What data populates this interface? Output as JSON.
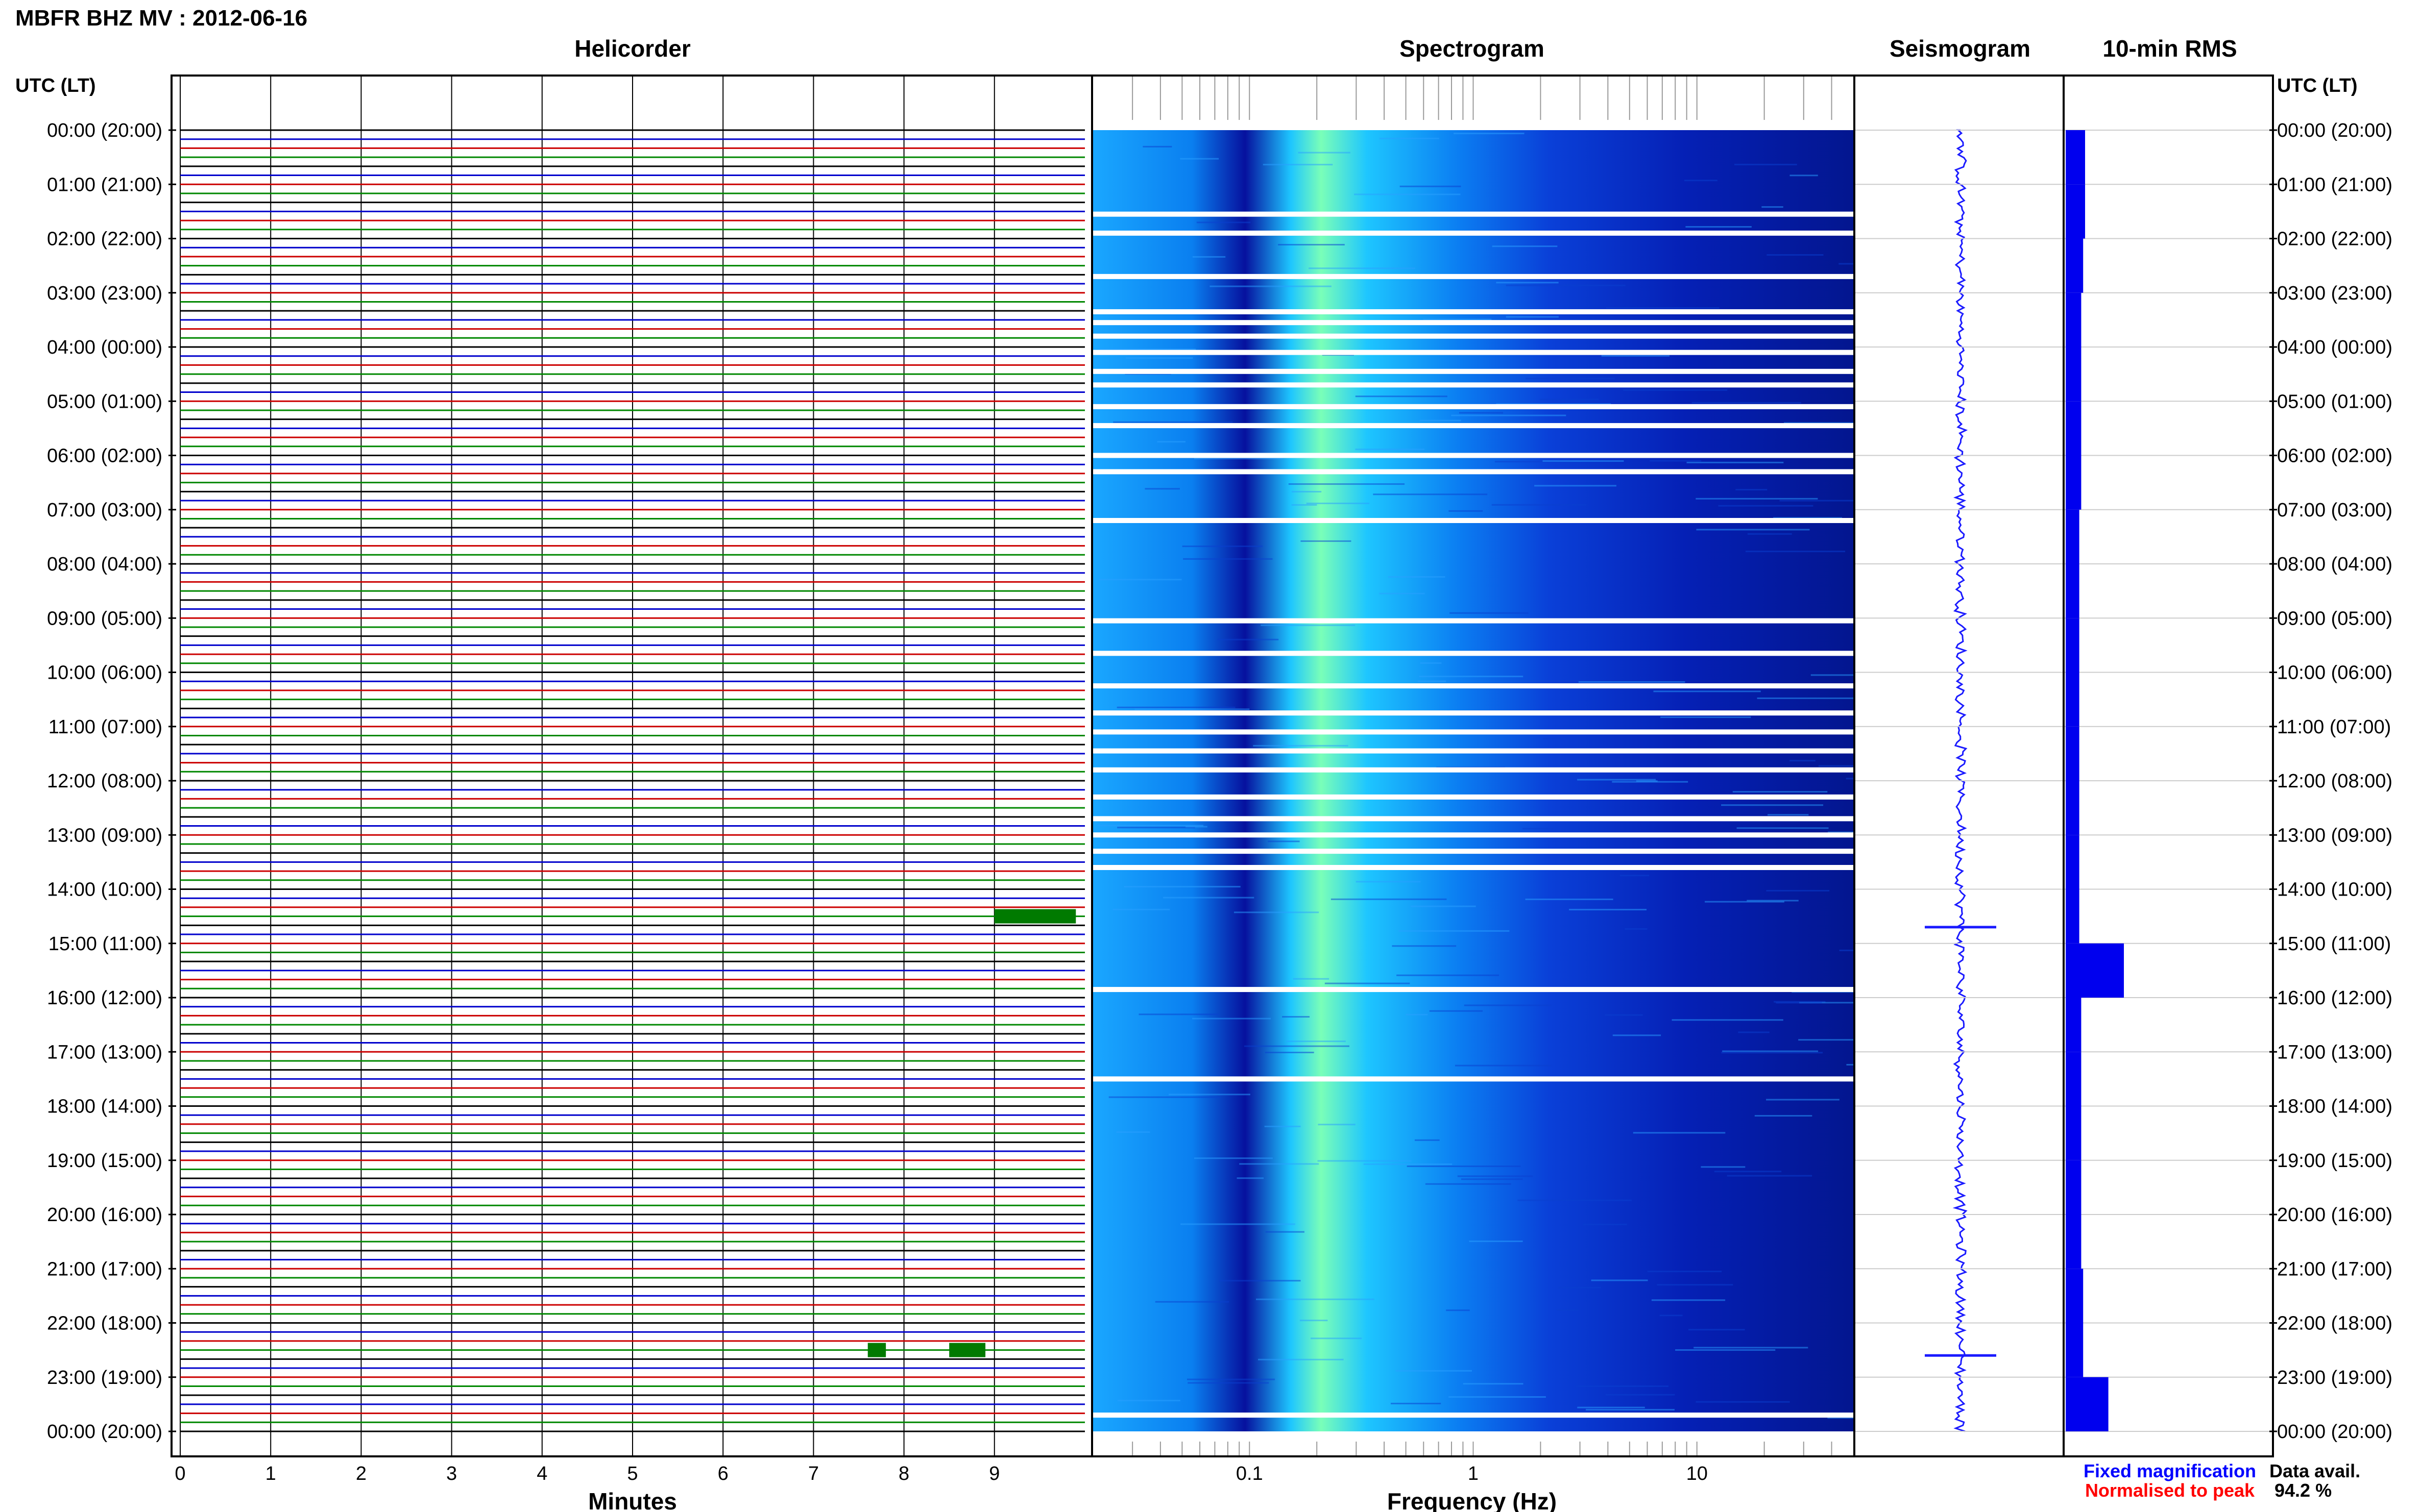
{
  "chart_data": {
    "type": "seismic_overview",
    "station_title": "MBFR BHZ MV : 2012-06-16",
    "panels": {
      "helicorder": {
        "title": "Helicorder",
        "xlabel": "Minutes",
        "x_ticks": [
          "0",
          "1",
          "2",
          "3",
          "4",
          "5",
          "6",
          "7",
          "8",
          "9"
        ],
        "xlim": [
          0,
          10
        ],
        "traces_per_hour": 6,
        "trace_colors": [
          "#000000",
          "#0000cc",
          "#cc0000",
          "#008800"
        ],
        "events": [
          {
            "hour_utc": 14.5,
            "minute_start": 9.0,
            "minute_end": 9.9,
            "label": ""
          },
          {
            "hour_utc": 22.5,
            "minute_start": 7.6,
            "minute_end": 7.8,
            "label": ""
          },
          {
            "hour_utc": 22.5,
            "minute_start": 8.5,
            "minute_end": 8.9,
            "label": ""
          }
        ]
      },
      "spectrogram": {
        "title": "Spectrogram",
        "xlabel": "Frequency (Hz)",
        "x_scale": "log",
        "xlim": [
          0.02,
          50
        ],
        "x_ticks": [
          "0.1",
          "1",
          "10"
        ],
        "gaps_hours_utc": [
          1.55,
          1.9,
          2.7,
          3.35,
          3.55,
          3.8,
          4.1,
          4.45,
          4.7,
          5.1,
          5.45,
          6.0,
          6.3,
          7.2,
          9.05,
          9.65,
          10.25,
          10.75,
          11.1,
          11.45,
          11.8,
          12.3,
          12.7,
          13.0,
          13.3,
          13.6,
          15.85,
          17.5,
          23.7
        ],
        "colormap": [
          "#000080",
          "#0022cc",
          "#0066ff",
          "#00ccff",
          "#66ff99"
        ]
      },
      "seismogram": {
        "title": "Seismogram"
      },
      "rms": {
        "title": "10-min RMS",
        "values_hourly": [
          1.0,
          1.0,
          0.9,
          0.8,
          0.8,
          0.8,
          0.8,
          0.7,
          0.7,
          0.7,
          0.7,
          0.7,
          0.7,
          0.7,
          0.7,
          3.0,
          0.8,
          0.8,
          0.8,
          0.8,
          0.8,
          0.9,
          0.9,
          2.2,
          0.9
        ]
      }
    },
    "y_axis": {
      "label": "UTC (LT)",
      "ticks": [
        "00:00 (20:00)",
        "01:00 (21:00)",
        "02:00 (22:00)",
        "03:00 (23:00)",
        "04:00 (00:00)",
        "05:00 (01:00)",
        "06:00 (02:00)",
        "07:00 (03:00)",
        "08:00 (04:00)",
        "09:00 (05:00)",
        "10:00 (06:00)",
        "11:00 (07:00)",
        "12:00 (08:00)",
        "13:00 (09:00)",
        "14:00 (10:00)",
        "15:00 (11:00)",
        "16:00 (12:00)",
        "17:00 (13:00)",
        "18:00 (14:00)",
        "19:00 (15:00)",
        "20:00 (16:00)",
        "21:00 (17:00)",
        "22:00 (18:00)",
        "23:00 (19:00)",
        "00:00 (20:00)"
      ]
    },
    "legend": {
      "fixed": {
        "text": "Fixed magnification",
        "color": "#0000ff"
      },
      "normalised": {
        "text": "Normalised to peak",
        "color": "#ff0000"
      }
    },
    "data_availability": {
      "label": "Data avail.",
      "value": "94.2 %"
    }
  }
}
